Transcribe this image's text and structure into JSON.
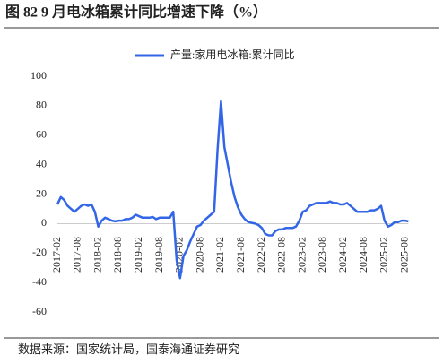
{
  "chart_data": {
    "type": "line",
    "title": "图 82 9 月电冰箱累计同比增速下降（%）",
    "source": "数据来源：国家统计局，国泰海通证券研究",
    "categories": [
      "2017-02",
      null,
      null,
      null,
      null,
      null,
      "2017-08",
      null,
      null,
      null,
      null,
      null,
      "2018-02",
      null,
      null,
      null,
      null,
      null,
      "2018-08",
      null,
      null,
      null,
      null,
      null,
      "2019-02",
      null,
      null,
      null,
      null,
      null,
      "2019-08",
      null,
      null,
      null,
      null,
      null,
      "2020-02",
      null,
      null,
      null,
      null,
      null,
      "2020-08",
      null,
      null,
      null,
      null,
      null,
      "2021-02",
      null,
      null,
      null,
      null,
      null,
      "2021-08",
      null,
      null,
      null,
      null,
      null,
      "2022-02",
      null,
      null,
      null,
      null,
      null,
      "2022-08",
      null,
      null,
      null,
      null,
      null,
      "2023-02",
      null,
      null,
      null,
      null,
      null,
      "2023-08",
      null,
      null,
      null,
      null,
      null,
      "2024-02",
      null,
      null,
      null,
      null,
      null,
      "2024-08",
      null,
      null,
      null,
      null,
      null,
      "2025-02",
      null,
      null,
      null,
      null,
      null,
      "2025-08",
      null
    ],
    "series": [
      {
        "name": "产量:家用电冰箱:累计同比",
        "color": "#3366e6",
        "values": [
          13,
          18,
          16,
          12,
          10,
          8,
          10,
          12,
          13,
          12,
          13,
          8,
          -2,
          2,
          4,
          3,
          2,
          1.5,
          2,
          2,
          3,
          3,
          4,
          6,
          5,
          4,
          4,
          4,
          4.5,
          3,
          4,
          4,
          4,
          4,
          8,
          -25,
          -37,
          -22,
          -18,
          -12,
          -7,
          -2,
          -1,
          2,
          4,
          6,
          8,
          50,
          83,
          52,
          40,
          28,
          18,
          11,
          6,
          3,
          1,
          0.5,
          0,
          -1,
          -3,
          -7,
          -8,
          -8,
          -5,
          -4,
          -4,
          -3,
          -3,
          -3,
          -2,
          2,
          8,
          9,
          12,
          13,
          14,
          14,
          14,
          14,
          15,
          14,
          14,
          13,
          13,
          14,
          12,
          10,
          8,
          8,
          8,
          8,
          9,
          9,
          10,
          12,
          2,
          -2,
          -1,
          1,
          1,
          2,
          2,
          1.5
        ]
      }
    ],
    "ylim": [
      -60,
      100
    ],
    "yticks": [
      -60,
      -40,
      -20,
      0,
      20,
      40,
      60,
      80,
      100
    ],
    "legend": "top"
  }
}
